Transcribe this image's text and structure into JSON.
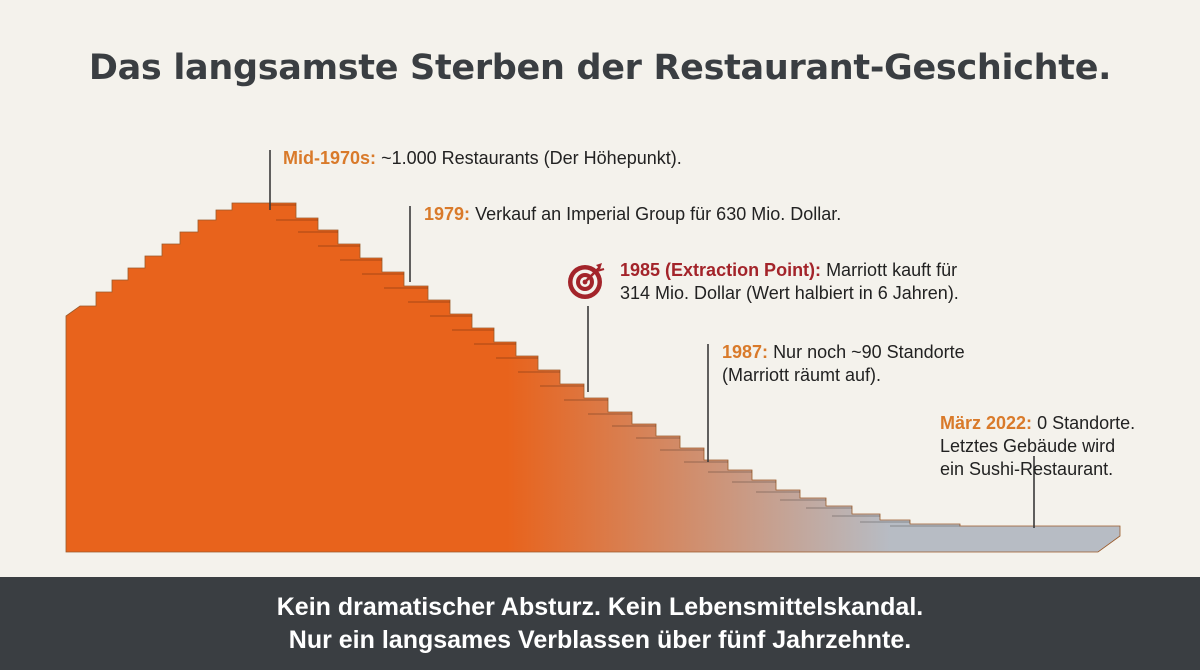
{
  "title": "Das langsamste Sterben der Restaurant-Geschichte.",
  "colors": {
    "peak_orange": "#e8631c",
    "faded_gray": "#b7bcc4",
    "label_orange": "#d97a2a",
    "label_red": "#a3242a",
    "footer_bg": "#3a3e42",
    "title_color": "#3a3e42"
  },
  "milestones": [
    {
      "label": "Mid-1970s:",
      "text_lines": [
        "~1.000 Restaurants (Der Höhepunkt)."
      ]
    },
    {
      "label": "1979:",
      "text_lines": [
        "Verkauf an Imperial Group für 630 Mio. Dollar."
      ]
    },
    {
      "label": "1985 (Extraction Point):",
      "text_lines": [
        "Marriott kauft für",
        "314 Mio. Dollar (Wert halbiert in 6 Jahren)."
      ],
      "icon": "target-icon"
    },
    {
      "label": "1987:",
      "text_lines": [
        "Nur noch ~90 Standorte",
        "(Marriott räumt auf)."
      ]
    },
    {
      "label": "März 2022:",
      "text_lines": [
        "0 Standorte.",
        "Letztes Gebäude wird",
        "ein Sushi-Restaurant."
      ]
    }
  ],
  "footer": {
    "line1": "Kein dramatischer Absturz. Kein Lebensmittelskandal.",
    "line2": "Nur ein langsames Verblassen über fünf Jahrzehnte."
  }
}
